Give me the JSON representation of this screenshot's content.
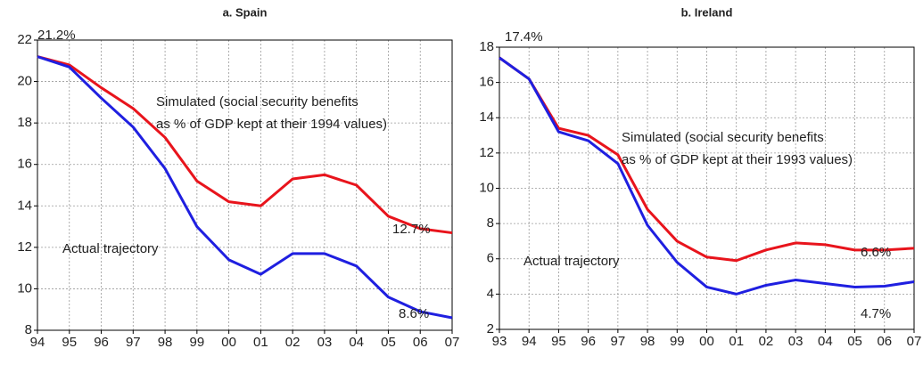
{
  "chart_data": [
    {
      "type": "line",
      "title": "a. Spain",
      "categories": [
        "94",
        "95",
        "96",
        "97",
        "98",
        "99",
        "00",
        "01",
        "02",
        "03",
        "04",
        "05",
        "06",
        "07"
      ],
      "series": [
        {
          "color": "#e8141c",
          "values": [
            21.2,
            20.8,
            19.7,
            18.7,
            17.3,
            15.2,
            14.2,
            14.0,
            15.3,
            15.5,
            15.0,
            13.5,
            12.9,
            12.7
          ]
        },
        {
          "color": "#1f1fe0",
          "values": [
            21.2,
            20.7,
            19.2,
            17.8,
            15.8,
            13.0,
            11.4,
            10.7,
            11.7,
            11.7,
            11.1,
            9.6,
            8.9,
            8.6
          ]
        }
      ],
      "ylim": [
        8,
        22
      ],
      "yticks": [
        8,
        10,
        12,
        14,
        16,
        18,
        20,
        22
      ],
      "grid": true,
      "annotations": [
        "21.2%",
        "Simulated (social security benefits",
        "as % of GDP kept at their 1994 values)",
        "Actual trajectory",
        "12.7%",
        "8.6%"
      ]
    },
    {
      "type": "line",
      "title": "b. Ireland",
      "categories": [
        "93",
        "94",
        "95",
        "96",
        "97",
        "98",
        "99",
        "00",
        "01",
        "02",
        "03",
        "04",
        "05",
        "06",
        "07"
      ],
      "series": [
        {
          "color": "#e8141c",
          "values": [
            17.4,
            16.2,
            13.4,
            13.0,
            11.9,
            8.8,
            7.0,
            6.1,
            5.9,
            6.5,
            6.9,
            6.8,
            6.5,
            6.5,
            6.6
          ]
        },
        {
          "color": "#1f1fe0",
          "values": [
            17.4,
            16.2,
            13.2,
            12.7,
            11.4,
            7.9,
            5.8,
            4.4,
            4.0,
            4.5,
            4.8,
            4.6,
            4.4,
            4.45,
            4.7
          ]
        }
      ],
      "ylim": [
        2,
        18
      ],
      "yticks": [
        2,
        4,
        6,
        8,
        10,
        12,
        14,
        16,
        18
      ],
      "grid": true,
      "annotations": [
        "17.4%",
        "Simulated (social security benefits",
        "as % of GDP kept at their 1993 values)",
        "Actual trajectory",
        "6.6%",
        "4.7%"
      ]
    }
  ]
}
